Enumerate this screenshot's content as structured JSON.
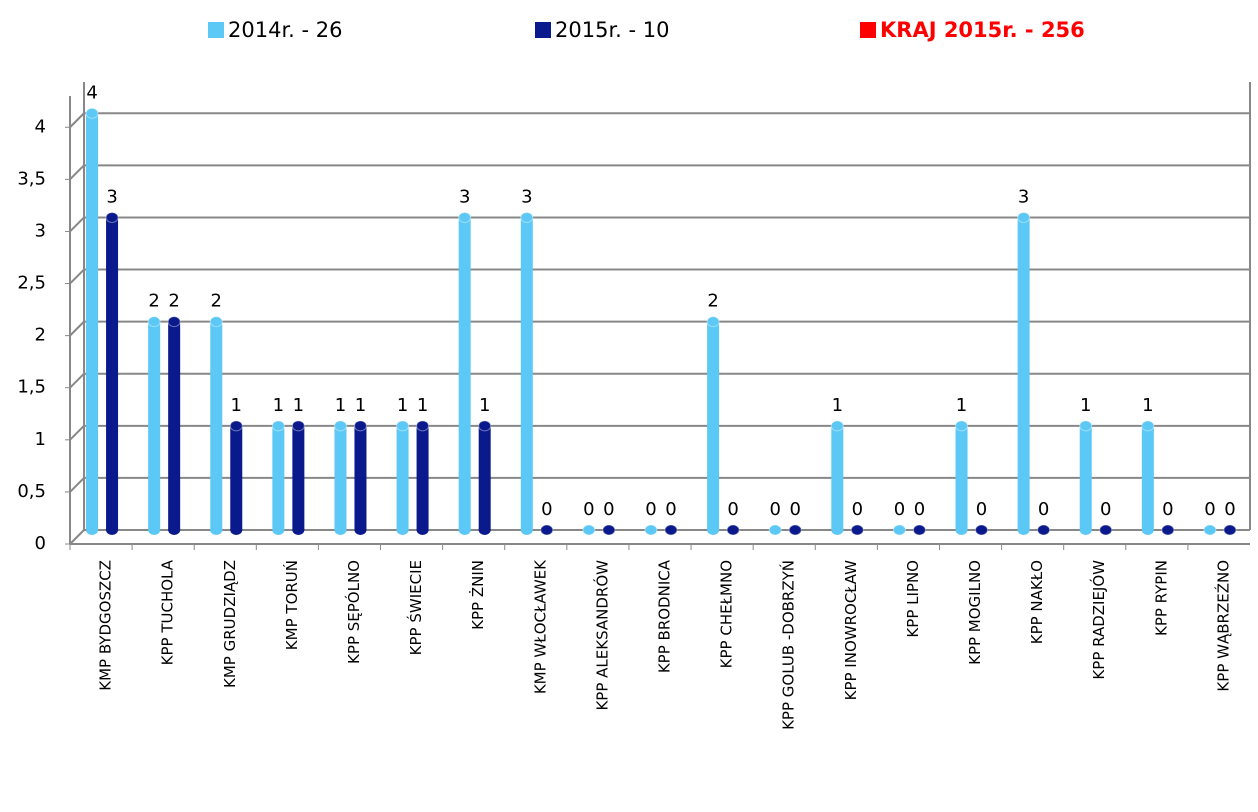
{
  "chart_data": {
    "type": "bar",
    "categories": [
      "KMP  BYDGOSZCZ",
      "KPP  TUCHOLA",
      "KMP  GRUDZIĄDZ",
      "KMP  TORUŃ",
      "KPP  SĘPÓLNO",
      "KPP  ŚWIECIE",
      "KPP  ŻNIN",
      "KMP  WŁOCŁAWEK",
      "KPP  ALEKSANDRÓW",
      "KPP BRODNICA",
      "KPP  CHEŁMNO",
      "KPP  GOLUB -DOBRZYŃ",
      "KPP  INOWROCŁAW",
      "KPP  LIPNO",
      "KPP  MOGILNO",
      "KPP  NAKŁO",
      "KPP  RADZIEJÓW",
      "KPP  RYPIN",
      "KPP  WĄBRZEŹNO"
    ],
    "series": [
      {
        "name": "2014r. - 26",
        "color": "#5bc8f5",
        "values": [
          4,
          2,
          2,
          1,
          1,
          1,
          3,
          3,
          0,
          0,
          2,
          0,
          1,
          0,
          1,
          3,
          1,
          1,
          0
        ]
      },
      {
        "name": "2015r. - 10",
        "color": "#0a1a8c",
        "values": [
          3,
          2,
          1,
          1,
          1,
          1,
          1,
          0,
          0,
          0,
          0,
          0,
          0,
          0,
          0,
          0,
          0,
          0,
          0
        ]
      }
    ],
    "legend_note": {
      "text": "KRAJ 2015r. - 256",
      "color": "#ff0000"
    },
    "ylim": [
      0,
      4.3
    ],
    "yticks": [
      0,
      {
        "value": 0.5,
        "label": "0,5"
      },
      1,
      {
        "value": 1.5,
        "label": "1,5"
      },
      2,
      {
        "value": 2.5,
        "label": "2,5"
      },
      3,
      {
        "value": 3.5,
        "label": "3,5"
      },
      4
    ],
    "grid": true
  }
}
